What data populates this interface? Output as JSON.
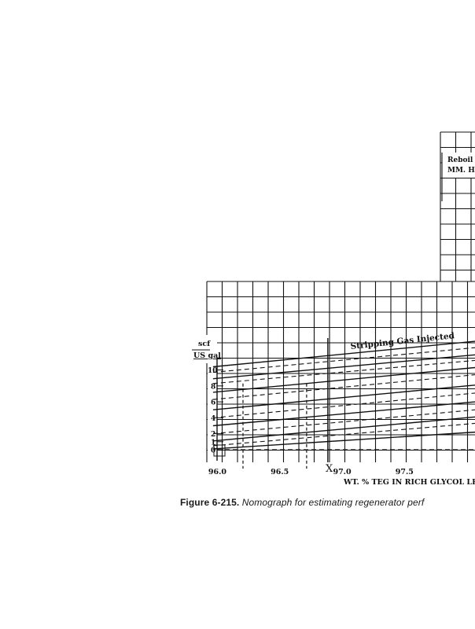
{
  "chart_data": {
    "type": "line",
    "title": "",
    "xlabel": "WT. % TEG IN RICH GLYCOL LE",
    "ylabel": "scf / US gal",
    "ylabel_top": "scf",
    "ylabel_bottom": "US gal",
    "xlim": [
      95.9,
      98.05
    ],
    "ylim": [
      -0.6,
      14
    ],
    "x_ticks": [
      {
        "value": 96.0,
        "label": "96.0"
      },
      {
        "value": 96.5,
        "label": "96.5"
      },
      {
        "value": 97.0,
        "label": "97.0"
      },
      {
        "value": 97.5,
        "label": "97.5"
      }
    ],
    "y_ticks": [
      {
        "value": 0,
        "label": "0"
      },
      {
        "value": 1,
        "label": "1"
      },
      {
        "value": 2,
        "label": "2"
      },
      {
        "value": 4,
        "label": "4"
      },
      {
        "value": 6,
        "label": "6"
      },
      {
        "value": 8,
        "label": "8"
      },
      {
        "value": 10,
        "label": "10"
      }
    ],
    "annotations": {
      "curve_label": "Stripping Gas Injected",
      "x_marker": "X",
      "x_marker_value": 96.87,
      "reboiler_line1": "Reboil",
      "reboiler_line2": "MM. H"
    },
    "grid": true,
    "series": [
      {
        "style": "solid",
        "points": [
          [
            95.95,
            10.4
          ],
          [
            98.05,
            13.6
          ]
        ]
      },
      {
        "style": "dashed",
        "points": [
          [
            95.95,
            9.7
          ],
          [
            98.05,
            12.8
          ]
        ]
      },
      {
        "style": "solid",
        "points": [
          [
            95.95,
            8.9
          ],
          [
            98.05,
            11.9
          ]
        ]
      },
      {
        "style": "dashed",
        "points": [
          [
            95.95,
            8.3
          ],
          [
            98.05,
            11.2
          ]
        ]
      },
      {
        "style": "solid",
        "points": [
          [
            95.95,
            7.2
          ],
          [
            98.05,
            10.3
          ]
        ]
      },
      {
        "style": "dashed",
        "points": [
          [
            95.95,
            6.3
          ],
          [
            98.05,
            9.4
          ]
        ]
      },
      {
        "style": "solid",
        "points": [
          [
            95.95,
            5.0
          ],
          [
            98.05,
            8.1
          ]
        ]
      },
      {
        "style": "dashed",
        "points": [
          [
            95.95,
            4.0
          ],
          [
            98.05,
            7.1
          ]
        ]
      },
      {
        "style": "solid",
        "points": [
          [
            95.95,
            3.0
          ],
          [
            98.05,
            6.0
          ]
        ]
      },
      {
        "style": "dashed",
        "points": [
          [
            95.95,
            2.0
          ],
          [
            98.05,
            5.0
          ]
        ]
      },
      {
        "style": "solid",
        "points": [
          [
            95.95,
            1.1
          ],
          [
            98.05,
            4.1
          ]
        ]
      },
      {
        "style": "dashed",
        "points": [
          [
            95.95,
            0.5
          ],
          [
            98.05,
            3.3
          ]
        ]
      },
      {
        "style": "solid",
        "points": [
          [
            95.95,
            0.1
          ],
          [
            98.05,
            2.2
          ]
        ]
      }
    ],
    "verticals": [
      {
        "style": "dashed",
        "x": 96.19
      },
      {
        "style": "dashed",
        "x": 96.7
      }
    ]
  },
  "caption": {
    "figure": "Figure 6-215.",
    "text": "Nomograph for estimating regenerator perf"
  }
}
